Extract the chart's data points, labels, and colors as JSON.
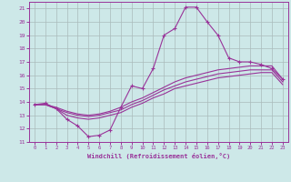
{
  "xlabel": "Windchill (Refroidissement éolien,°C)",
  "bg_color": "#cde8e8",
  "grid_color": "#aabbbb",
  "line_color": "#993399",
  "xlim": [
    -0.5,
    23.5
  ],
  "ylim": [
    11,
    21.5
  ],
  "yticks": [
    11,
    12,
    13,
    14,
    15,
    16,
    17,
    18,
    19,
    20,
    21
  ],
  "xticks": [
    0,
    1,
    2,
    3,
    4,
    5,
    6,
    7,
    8,
    9,
    10,
    11,
    12,
    13,
    14,
    15,
    16,
    17,
    18,
    19,
    20,
    21,
    22,
    23
  ],
  "series": [
    {
      "x": [
        0,
        1,
        2,
        3,
        4,
        5,
        6,
        7,
        8,
        9,
        10,
        11,
        12,
        13,
        14,
        15,
        16,
        17,
        18,
        19,
        20,
        21,
        22,
        23
      ],
      "y": [
        13.8,
        13.9,
        13.5,
        12.7,
        12.2,
        11.4,
        11.5,
        11.9,
        13.6,
        15.2,
        15.0,
        16.5,
        19.0,
        19.5,
        21.1,
        21.1,
        20.0,
        19.0,
        17.3,
        17.0,
        17.0,
        16.8,
        16.5,
        15.7
      ],
      "marker": true
    },
    {
      "x": [
        0,
        1,
        2,
        3,
        4,
        5,
        6,
        7,
        8,
        9,
        10,
        11,
        12,
        13,
        14,
        15,
        16,
        17,
        18,
        19,
        20,
        21,
        22,
        23
      ],
      "y": [
        13.8,
        13.8,
        13.6,
        13.3,
        13.1,
        13.0,
        13.1,
        13.3,
        13.6,
        14.0,
        14.3,
        14.7,
        15.1,
        15.5,
        15.8,
        16.0,
        16.2,
        16.4,
        16.5,
        16.6,
        16.7,
        16.7,
        16.7,
        15.7
      ],
      "marker": false
    },
    {
      "x": [
        0,
        1,
        2,
        3,
        4,
        5,
        6,
        7,
        8,
        9,
        10,
        11,
        12,
        13,
        14,
        15,
        16,
        17,
        18,
        19,
        20,
        21,
        22,
        23
      ],
      "y": [
        13.8,
        13.8,
        13.5,
        13.2,
        13.0,
        12.9,
        13.0,
        13.2,
        13.4,
        13.8,
        14.1,
        14.5,
        14.9,
        15.2,
        15.5,
        15.7,
        15.9,
        16.1,
        16.2,
        16.3,
        16.4,
        16.4,
        16.4,
        15.5
      ],
      "marker": false
    },
    {
      "x": [
        0,
        1,
        2,
        3,
        4,
        5,
        6,
        7,
        8,
        9,
        10,
        11,
        12,
        13,
        14,
        15,
        16,
        17,
        18,
        19,
        20,
        21,
        22,
        23
      ],
      "y": [
        13.8,
        13.8,
        13.5,
        13.0,
        12.8,
        12.7,
        12.8,
        13.0,
        13.2,
        13.6,
        13.9,
        14.3,
        14.6,
        15.0,
        15.2,
        15.4,
        15.6,
        15.8,
        15.9,
        16.0,
        16.1,
        16.2,
        16.2,
        15.3
      ],
      "marker": false
    }
  ]
}
